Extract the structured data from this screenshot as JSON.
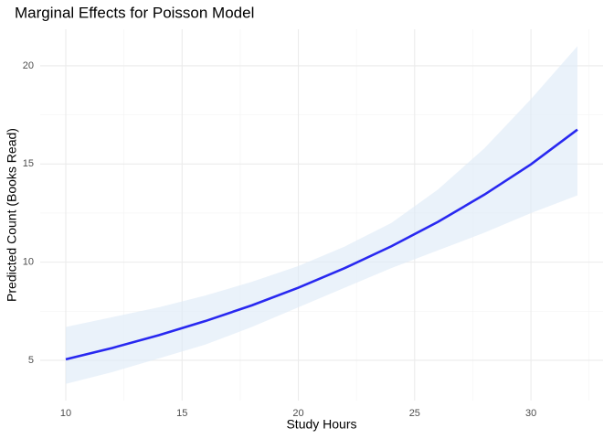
{
  "chart_data": {
    "type": "line",
    "title": "Marginal Effects for Poisson Model",
    "x_label": "Study Hours",
    "y_label": "Predicted Count (Books Read)",
    "x": [
      10,
      12,
      14,
      16,
      18,
      20,
      22,
      24,
      26,
      28,
      30,
      32
    ],
    "series": [
      {
        "color": "#2828f0",
        "ribbon_color": "#deebf7",
        "values": [
          5.05,
          5.63,
          6.28,
          7.0,
          7.8,
          8.7,
          9.7,
          10.81,
          12.05,
          13.44,
          14.98,
          16.75
        ],
        "lower": [
          3.8,
          4.4,
          5.1,
          5.8,
          6.7,
          7.7,
          8.7,
          9.7,
          10.6,
          11.5,
          12.5,
          13.4
        ],
        "upper": [
          6.7,
          7.2,
          7.7,
          8.3,
          9.0,
          9.8,
          10.8,
          12.0,
          13.7,
          15.8,
          18.3,
          21.0
        ]
      }
    ],
    "xlim": [
      8.9,
      33.1
    ],
    "xticks": [
      10,
      15,
      20,
      25,
      30
    ],
    "ylim": [
      2.95,
      21.86
    ],
    "yticks": [
      5,
      10,
      15,
      20
    ],
    "grid": true
  }
}
